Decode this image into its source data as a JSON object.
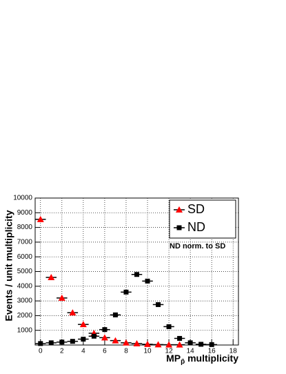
{
  "chart_data": {
    "type": "scatter",
    "y_label": "Events / unit multiplicity",
    "x_label": "MP",
    "x_label_sub": "p̄",
    "x_label_rest": " multiplicity",
    "annotation": "ND norm. to SD",
    "xlim": [
      -0.5,
      18.5
    ],
    "ylim": [
      0,
      10000
    ],
    "xticks": [
      0,
      2,
      4,
      6,
      8,
      10,
      12,
      14,
      16,
      18
    ],
    "yticks": [
      1000,
      2000,
      3000,
      4000,
      5000,
      6000,
      7000,
      8000,
      9000,
      10000
    ],
    "grid": true,
    "legend": "upper right",
    "series": [
      {
        "name": "SD",
        "color": "#ff0000",
        "marker": "triangle",
        "xerr": 0.5,
        "x": [
          0,
          1,
          2,
          3,
          4,
          5,
          6,
          7,
          8,
          9,
          10,
          11,
          12,
          13
        ],
        "values": [
          8550,
          4600,
          3200,
          2200,
          1400,
          800,
          500,
          300,
          150,
          100,
          50,
          30,
          20,
          20
        ]
      },
      {
        "name": "ND",
        "color": "#000000",
        "marker": "square",
        "xerr": 0.5,
        "x": [
          0,
          1,
          2,
          3,
          4,
          5,
          6,
          7,
          8,
          9,
          10,
          11,
          12,
          13,
          14,
          15,
          16
        ],
        "values": [
          100,
          150,
          200,
          250,
          400,
          600,
          1050,
          2050,
          3600,
          4800,
          4350,
          2750,
          1250,
          450,
          150,
          50,
          30
        ]
      }
    ]
  }
}
